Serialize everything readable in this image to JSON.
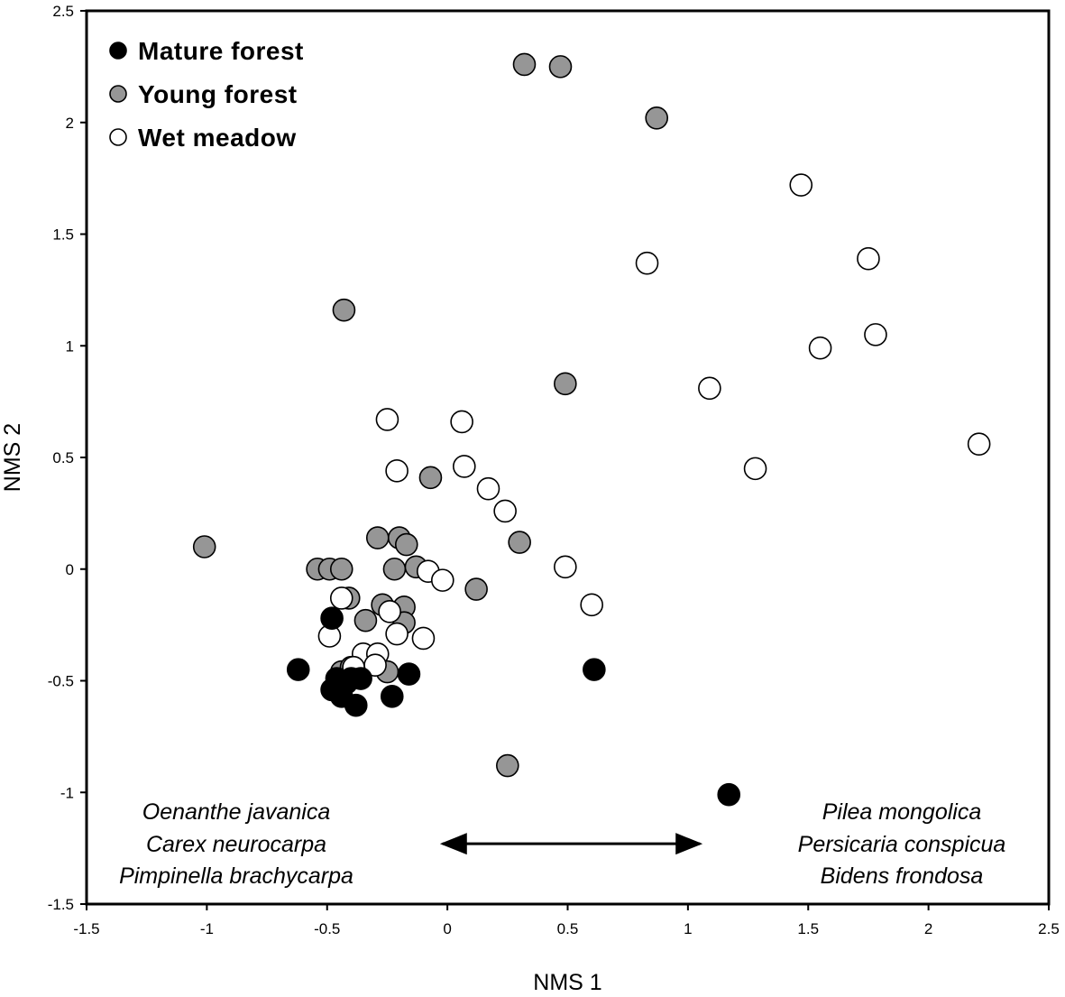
{
  "chart_data": {
    "type": "scatter",
    "xlabel": "NMS 1",
    "ylabel": "NMS 2",
    "xlim": [
      -1.5,
      2.5
    ],
    "ylim": [
      -1.5,
      2.5
    ],
    "xticks": [
      "-1.5",
      "-1",
      "-0.5",
      "0",
      "0.5",
      "1",
      "1.5",
      "2",
      "2.5"
    ],
    "yticks": [
      "-1.5",
      "-1",
      "-0.5",
      "0",
      "0.5",
      "1",
      "1.5",
      "2",
      "2.5"
    ],
    "xtick_values": [
      -1.5,
      -1,
      -0.5,
      0,
      0.5,
      1,
      1.5,
      2,
      2.5
    ],
    "ytick_values": [
      -1.5,
      -1,
      -0.5,
      0,
      0.5,
      1,
      1.5,
      2,
      2.5
    ],
    "legend_position": "top-left",
    "grid": false,
    "series": [
      {
        "name": "Mature forest",
        "color": "#000000",
        "points": [
          [
            -0.62,
            -0.45
          ],
          [
            -0.48,
            -0.22
          ],
          [
            -0.48,
            -0.54
          ],
          [
            -0.46,
            -0.49
          ],
          [
            -0.44,
            -0.57
          ],
          [
            -0.42,
            -0.51
          ],
          [
            -0.4,
            -0.49
          ],
          [
            -0.38,
            -0.61
          ],
          [
            -0.36,
            -0.49
          ],
          [
            -0.23,
            -0.57
          ],
          [
            -0.16,
            -0.47
          ],
          [
            0.61,
            -0.45
          ],
          [
            1.17,
            -1.01
          ]
        ]
      },
      {
        "name": "Young forest",
        "color": "#969696",
        "points": [
          [
            0.32,
            2.26
          ],
          [
            0.47,
            2.25
          ],
          [
            0.87,
            2.02
          ],
          [
            -0.43,
            1.16
          ],
          [
            0.49,
            0.83
          ],
          [
            -0.07,
            0.41
          ],
          [
            -1.01,
            0.1
          ],
          [
            -0.54,
            0.0
          ],
          [
            -0.49,
            0.0
          ],
          [
            -0.44,
            0.0
          ],
          [
            -0.29,
            0.14
          ],
          [
            -0.2,
            0.14
          ],
          [
            -0.17,
            0.11
          ],
          [
            -0.22,
            0.0
          ],
          [
            -0.13,
            0.01
          ],
          [
            0.12,
            -0.09
          ],
          [
            0.3,
            0.12
          ],
          [
            -0.41,
            -0.13
          ],
          [
            -0.34,
            -0.23
          ],
          [
            -0.27,
            -0.16
          ],
          [
            -0.18,
            -0.17
          ],
          [
            -0.18,
            -0.24
          ],
          [
            -0.44,
            -0.46
          ],
          [
            -0.4,
            -0.44
          ],
          [
            -0.25,
            -0.46
          ],
          [
            0.25,
            -0.88
          ]
        ]
      },
      {
        "name": "Wet meadow",
        "color": "#ffffff",
        "points": [
          [
            1.47,
            1.72
          ],
          [
            0.83,
            1.37
          ],
          [
            1.75,
            1.39
          ],
          [
            1.55,
            0.99
          ],
          [
            1.78,
            1.05
          ],
          [
            1.09,
            0.81
          ],
          [
            1.28,
            0.45
          ],
          [
            2.21,
            0.56
          ],
          [
            -0.25,
            0.67
          ],
          [
            0.06,
            0.66
          ],
          [
            -0.21,
            0.44
          ],
          [
            0.07,
            0.46
          ],
          [
            0.17,
            0.36
          ],
          [
            0.24,
            0.26
          ],
          [
            0.49,
            0.01
          ],
          [
            0.6,
            -0.16
          ],
          [
            -0.08,
            -0.01
          ],
          [
            -0.02,
            -0.05
          ],
          [
            -0.44,
            -0.13
          ],
          [
            -0.24,
            -0.19
          ],
          [
            -0.49,
            -0.3
          ],
          [
            -0.21,
            -0.29
          ],
          [
            -0.1,
            -0.31
          ],
          [
            -0.35,
            -0.38
          ],
          [
            -0.29,
            -0.38
          ],
          [
            -0.39,
            -0.44
          ],
          [
            -0.3,
            -0.43
          ]
        ]
      }
    ],
    "annotations": {
      "left_species": [
        "Oenanthe javanica",
        "Carex neurocarpa",
        "Pimpinella brachycarpa"
      ],
      "right_species": [
        "Pilea mongolica",
        "Persicaria conspicua",
        "Bidens frondosa"
      ],
      "arrow": {
        "from": [
          -0.05,
          -1.23
        ],
        "to": [
          1.08,
          -1.23
        ],
        "double_headed": true
      }
    }
  }
}
